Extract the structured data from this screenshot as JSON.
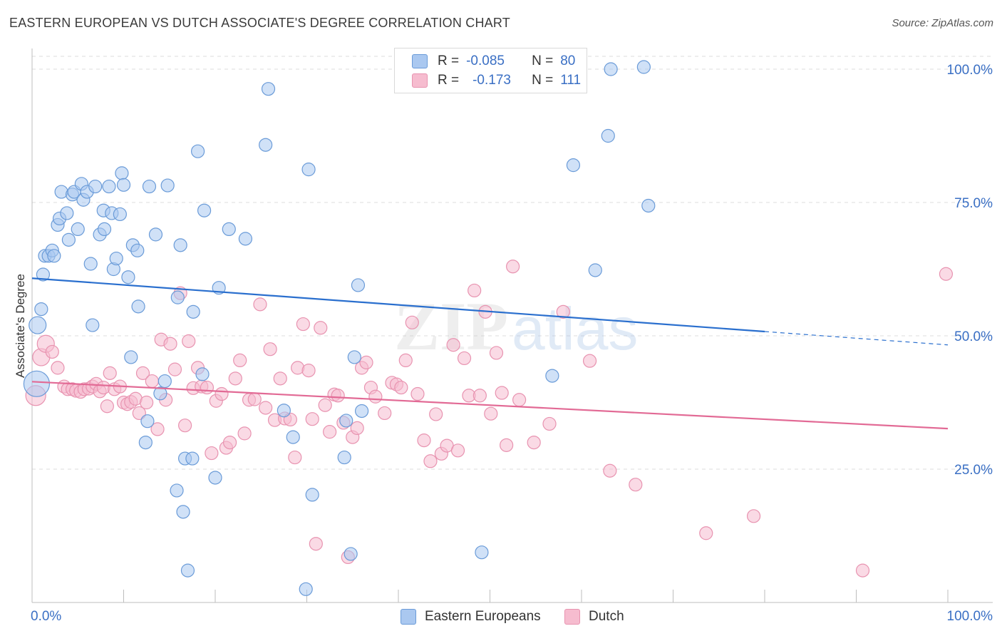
{
  "header": {
    "title": "EASTERN EUROPEAN VS DUTCH ASSOCIATE'S DEGREE CORRELATION CHART",
    "source": "Source: ZipAtlas.com"
  },
  "legend": {
    "rows": [
      {
        "r_label": "R =",
        "r_value": "-0.085",
        "n_label": "N =",
        "n_value": "80"
      },
      {
        "r_label": "R =",
        "r_value": "-0.173",
        "n_label": "N =",
        "n_value": "111"
      }
    ]
  },
  "bottom_legend": {
    "items": [
      "Eastern Europeans",
      "Dutch"
    ]
  },
  "watermark": {
    "zip": "ZIP",
    "atlas": "atlas"
  },
  "colors": {
    "blue_fill": "#aac8f0",
    "blue_stroke": "#6a9bd8",
    "blue_line": "#2a6fce",
    "pink_fill": "#f6bccf",
    "pink_stroke": "#e893b0",
    "pink_line": "#e26a95",
    "tick_label": "#3a6fc4",
    "grid": "#dcdcdc"
  },
  "chart_data": {
    "type": "scatter",
    "title": "EASTERN EUROPEAN VS DUTCH ASSOCIATE'S DEGREE CORRELATION CHART",
    "xlabel": "",
    "ylabel": "Associate's Degree",
    "x_tick_labels": [
      "0.0%",
      "100.0%"
    ],
    "y_tick_labels": [
      "100.0%",
      "75.0%",
      "50.0%",
      "25.0%"
    ],
    "y_ticks": [
      100,
      75,
      50,
      25
    ],
    "xlim": [
      0,
      100
    ],
    "ylim": [
      0,
      102
    ],
    "series": [
      {
        "name": "Eastern Europeans",
        "r": -0.085,
        "n": 80,
        "trend": {
          "x0": 0,
          "y0": 60.8,
          "x1": 80,
          "y1": 50.8,
          "dash_to_x": 100,
          "dash_to_y": 48.3
        },
        "points": [
          [
            0.5,
            41,
            18
          ],
          [
            0.6,
            52,
            12
          ],
          [
            1,
            55,
            9
          ],
          [
            1.2,
            61.5,
            9
          ],
          [
            1.4,
            65,
            9
          ],
          [
            1.8,
            65,
            9
          ],
          [
            2.2,
            66,
            9
          ],
          [
            2.4,
            65,
            9
          ],
          [
            2.8,
            70.8,
            9
          ],
          [
            3,
            72,
            9
          ],
          [
            3.2,
            77,
            9
          ],
          [
            3.8,
            73,
            9
          ],
          [
            4,
            68,
            9
          ],
          [
            4.4,
            76.5,
            9
          ],
          [
            4.6,
            77,
            9
          ],
          [
            5,
            70,
            9
          ],
          [
            5.4,
            78.5,
            9
          ],
          [
            5.6,
            75.5,
            9
          ],
          [
            6,
            77,
            9
          ],
          [
            6.4,
            63.5,
            9
          ],
          [
            6.6,
            52,
            9
          ],
          [
            6.9,
            78,
            9
          ],
          [
            7.4,
            69,
            9
          ],
          [
            7.8,
            73.5,
            9
          ],
          [
            7.9,
            70,
            9
          ],
          [
            8.4,
            78,
            9
          ],
          [
            8.7,
            73,
            9
          ],
          [
            8.9,
            62.5,
            9
          ],
          [
            9.2,
            64.5,
            9
          ],
          [
            9.6,
            72.8,
            9
          ],
          [
            9.8,
            80.5,
            9
          ],
          [
            10,
            78.3,
            9
          ],
          [
            10.5,
            61,
            9
          ],
          [
            10.8,
            46,
            9
          ],
          [
            11,
            67,
            9
          ],
          [
            11.5,
            66,
            9
          ],
          [
            11.6,
            55.5,
            9
          ],
          [
            12.4,
            30,
            9
          ],
          [
            12.6,
            34,
            9
          ],
          [
            12.8,
            78,
            9
          ],
          [
            13.5,
            69,
            9
          ],
          [
            14,
            39.2,
            9
          ],
          [
            14.5,
            41.5,
            9
          ],
          [
            14.8,
            78.2,
            9
          ],
          [
            15.8,
            21,
            9
          ],
          [
            15.9,
            57.2,
            9
          ],
          [
            16.2,
            67,
            9
          ],
          [
            16.5,
            17,
            9
          ],
          [
            16.7,
            27,
            9
          ],
          [
            17,
            6,
            9
          ],
          [
            17.5,
            27,
            9
          ],
          [
            17.6,
            54.5,
            9
          ],
          [
            18.1,
            84.6,
            9
          ],
          [
            18.6,
            42.8,
            9
          ],
          [
            18.8,
            73.5,
            9
          ],
          [
            20,
            23.4,
            9
          ],
          [
            20.4,
            59,
            9
          ],
          [
            21.5,
            70,
            9
          ],
          [
            23.3,
            68.2,
            9
          ],
          [
            25.5,
            85.8,
            9
          ],
          [
            25.8,
            96.3,
            9
          ],
          [
            27.5,
            36,
            9
          ],
          [
            28.5,
            31,
            9
          ],
          [
            29.9,
            2.5,
            9
          ],
          [
            30.2,
            81.2,
            9
          ],
          [
            30.6,
            20.2,
            9
          ],
          [
            34.1,
            27.2,
            9
          ],
          [
            34.3,
            34.1,
            9
          ],
          [
            34.8,
            9.1,
            9
          ],
          [
            35.2,
            46,
            9
          ],
          [
            35.6,
            59.5,
            9
          ],
          [
            36,
            35.9,
            9
          ],
          [
            49.1,
            9.4,
            9
          ],
          [
            56.8,
            42.5,
            9
          ],
          [
            59.1,
            82,
            9
          ],
          [
            61.5,
            62.3,
            9
          ],
          [
            62.9,
            87.5,
            9
          ],
          [
            63.2,
            100,
            9
          ],
          [
            66.8,
            100.4,
            9
          ],
          [
            67.3,
            74.4,
            9
          ]
        ]
      },
      {
        "name": "Dutch",
        "r": -0.173,
        "n": 111,
        "trend": {
          "x0": 0,
          "y0": 41.4,
          "x1": 100,
          "y1": 32.6
        },
        "points": [
          [
            0.4,
            38.8,
            14
          ],
          [
            1,
            46,
            12
          ],
          [
            1.5,
            48.5,
            12
          ],
          [
            2.2,
            47,
            9
          ],
          [
            2.8,
            44,
            9
          ],
          [
            3.5,
            40.5,
            9
          ],
          [
            3.9,
            40,
            9
          ],
          [
            4.4,
            40,
            9
          ],
          [
            4.8,
            39.7,
            9
          ],
          [
            5.3,
            39.5,
            9
          ],
          [
            5.7,
            40,
            9
          ],
          [
            6.2,
            40.1,
            9
          ],
          [
            6.6,
            40.5,
            9
          ],
          [
            7,
            41,
            9
          ],
          [
            7.4,
            39.6,
            9
          ],
          [
            7.8,
            40.3,
            9
          ],
          [
            8.2,
            36.8,
            9
          ],
          [
            8.5,
            43,
            9
          ],
          [
            9,
            40,
            9
          ],
          [
            9.6,
            40.5,
            9
          ],
          [
            10,
            37.5,
            9
          ],
          [
            10.4,
            37.2,
            9
          ],
          [
            10.8,
            37.6,
            9
          ],
          [
            11.3,
            38.2,
            9
          ],
          [
            11.7,
            35.5,
            9
          ],
          [
            12.1,
            43,
            9
          ],
          [
            12.5,
            37.5,
            9
          ],
          [
            13.1,
            41.5,
            9
          ],
          [
            13.7,
            32.5,
            9
          ],
          [
            14.1,
            49.3,
            9
          ],
          [
            14.6,
            38,
            9
          ],
          [
            15.1,
            48.5,
            9
          ],
          [
            15.6,
            43.7,
            9
          ],
          [
            16.2,
            58,
            9
          ],
          [
            16.7,
            33.2,
            9
          ],
          [
            17.1,
            49,
            9
          ],
          [
            17.6,
            40.2,
            9
          ],
          [
            18.1,
            44,
            9
          ],
          [
            18.5,
            40.5,
            9
          ],
          [
            19.1,
            40.3,
            9
          ],
          [
            19.6,
            28,
            9
          ],
          [
            20.1,
            37.8,
            9
          ],
          [
            20.7,
            39.1,
            9
          ],
          [
            21.2,
            29,
            9
          ],
          [
            21.6,
            30,
            9
          ],
          [
            22.2,
            42,
            9
          ],
          [
            22.7,
            45.4,
            9
          ],
          [
            23.2,
            31.7,
            9
          ],
          [
            23.7,
            38,
            9
          ],
          [
            24.3,
            38.1,
            9
          ],
          [
            24.9,
            55.9,
            9
          ],
          [
            25.5,
            36.5,
            9
          ],
          [
            26,
            47.5,
            9
          ],
          [
            26.5,
            34.2,
            9
          ],
          [
            27.1,
            42,
            9
          ],
          [
            27.6,
            34.5,
            9
          ],
          [
            28.2,
            34.3,
            9
          ],
          [
            28.7,
            27.2,
            9
          ],
          [
            29,
            44,
            9
          ],
          [
            29.6,
            52.2,
            9
          ],
          [
            30.2,
            43.5,
            9
          ],
          [
            30.6,
            34.4,
            9
          ],
          [
            31,
            11,
            9
          ],
          [
            31.5,
            51.5,
            9
          ],
          [
            32,
            37,
            9
          ],
          [
            32.5,
            32,
            9
          ],
          [
            33,
            39,
            9
          ],
          [
            33.4,
            38.8,
            9
          ],
          [
            34,
            33.7,
            9
          ],
          [
            34.5,
            8.5,
            9
          ],
          [
            35,
            31,
            9
          ],
          [
            35.5,
            32.7,
            9
          ],
          [
            36,
            44,
            9
          ],
          [
            36.5,
            45,
            9
          ],
          [
            37,
            40.3,
            9
          ],
          [
            37.5,
            38.6,
            9
          ],
          [
            38.5,
            35.5,
            9
          ],
          [
            39.3,
            41.2,
            9
          ],
          [
            39.8,
            40.9,
            9
          ],
          [
            40.3,
            40.3,
            9
          ],
          [
            40.8,
            45.4,
            9
          ],
          [
            41.5,
            52.5,
            9
          ],
          [
            42.1,
            39.1,
            9
          ],
          [
            42.8,
            30.4,
            9
          ],
          [
            43.5,
            26.5,
            9
          ],
          [
            44.1,
            35.3,
            9
          ],
          [
            44.7,
            27.9,
            9
          ],
          [
            45.3,
            29.4,
            9
          ],
          [
            46,
            48.3,
            9
          ],
          [
            46.5,
            28.5,
            9
          ],
          [
            47.2,
            45.8,
            9
          ],
          [
            47.7,
            38.8,
            9
          ],
          [
            48.3,
            58.5,
            9
          ],
          [
            48.9,
            38.8,
            9
          ],
          [
            49.5,
            54.5,
            9
          ],
          [
            50.1,
            35.4,
            9
          ],
          [
            50.7,
            46.8,
            9
          ],
          [
            51.3,
            39.3,
            9
          ],
          [
            51.8,
            29.5,
            9
          ],
          [
            52.5,
            63,
            9
          ],
          [
            53.2,
            38,
            9
          ],
          [
            54.8,
            30,
            9
          ],
          [
            56.5,
            33.5,
            9
          ],
          [
            58,
            54.5,
            9
          ],
          [
            60.9,
            45.3,
            9
          ],
          [
            63.1,
            24.7,
            9
          ],
          [
            65.9,
            22.1,
            9
          ],
          [
            73.6,
            13,
            9
          ],
          [
            78.8,
            16.2,
            9
          ],
          [
            90.7,
            6,
            9
          ],
          [
            99.8,
            61.6,
            9
          ]
        ]
      }
    ]
  }
}
